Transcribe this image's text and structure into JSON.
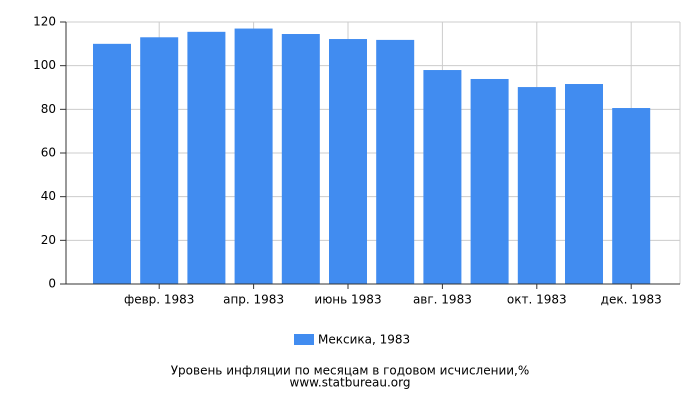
{
  "chart_data": {
    "type": "bar",
    "title": "Уровень инфляции по месяцам в годовом исчислении,%",
    "source": "www.statbureau.org",
    "categories": [
      null,
      "февр. 1983",
      null,
      "апр. 1983",
      null,
      "июнь 1983",
      null,
      "авг. 1983",
      null,
      "окт. 1983",
      null,
      "дек. 1983"
    ],
    "series": [
      {
        "name": "Мексика, 1983",
        "color": "#418cf0",
        "values": [
          110,
          113,
          115.5,
          117,
          114.5,
          112.2,
          111.8,
          98,
          93.9,
          90.2,
          91.6,
          80.6
        ]
      }
    ],
    "ylim": [
      0,
      120
    ],
    "yticks": [
      0,
      20,
      40,
      60,
      80,
      100,
      120
    ],
    "grid": true
  }
}
